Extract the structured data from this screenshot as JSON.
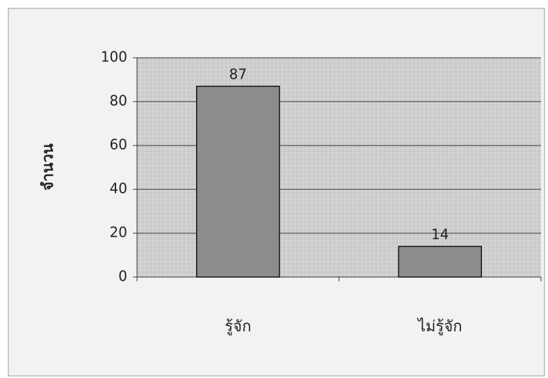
{
  "chart_data": {
    "type": "bar",
    "categories": [
      "รู้จัก",
      "ไม่รู้จัก"
    ],
    "values": [
      87,
      14
    ],
    "color": "#8c8c8c",
    "y_label": "จำนวน",
    "ylim": [
      0,
      100
    ],
    "yticks": [
      0,
      20,
      40,
      60,
      80,
      100
    ],
    "grid": true
  }
}
